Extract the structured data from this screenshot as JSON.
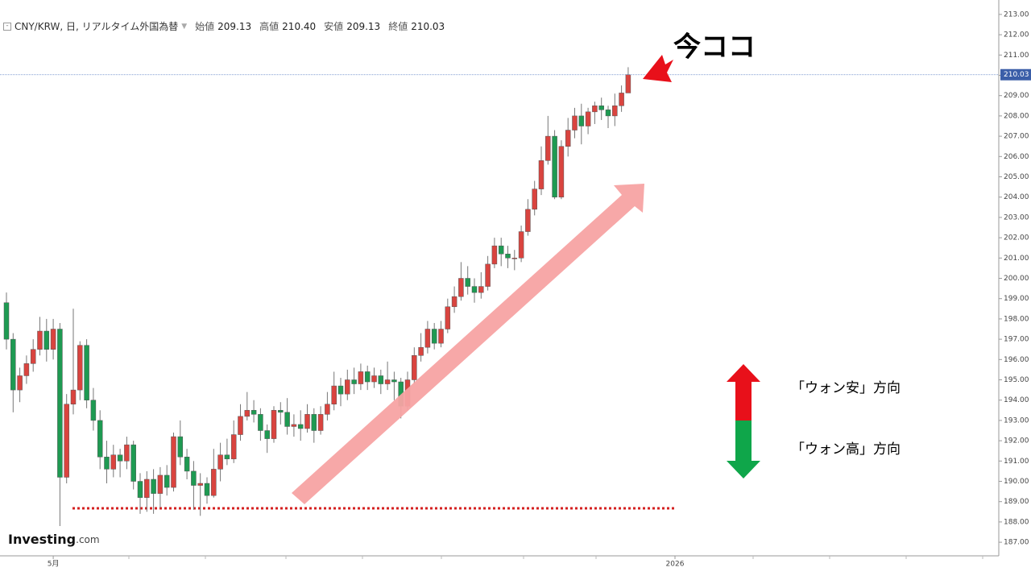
{
  "chart_data": {
    "type": "candlestick",
    "title": "CNY/KRW, 日, リアルタイム外国為替",
    "header_keys": [
      "始値",
      "高値",
      "安値",
      "終値"
    ],
    "last_labels": [
      "209.13",
      "210.40",
      "209.13",
      "210.03"
    ],
    "annotations": {
      "now": "今ココ",
      "weak": "「ウォン安」方向",
      "strong": "「ウォン高」方向"
    },
    "logo": [
      "Investing",
      ".com"
    ],
    "up_color": "#d9443f",
    "down_color": "#1e9a52",
    "support_line": 188.67,
    "support_color": "#d42020",
    "ylim": [
      186.33,
      213.71
    ],
    "yticks": [
      {
        "value": 187,
        "label": "187.00"
      },
      {
        "value": 188,
        "label": "188.00"
      },
      {
        "value": 189,
        "label": "189.00"
      },
      {
        "value": 190,
        "label": "190.00"
      },
      {
        "value": 191,
        "label": "191.00"
      },
      {
        "value": 192,
        "label": "192.00"
      },
      {
        "value": 193,
        "label": "193.00"
      },
      {
        "value": 194,
        "label": "194.00"
      },
      {
        "value": 195,
        "label": "195.00"
      },
      {
        "value": 196,
        "label": "196.00"
      },
      {
        "value": 197,
        "label": "197.00"
      },
      {
        "value": 198,
        "label": "198.00"
      },
      {
        "value": 199,
        "label": "199.00"
      },
      {
        "value": 200,
        "label": "200.00"
      },
      {
        "value": 201,
        "label": "201.00"
      },
      {
        "value": 202,
        "label": "202.00"
      },
      {
        "value": 203,
        "label": "203.00"
      },
      {
        "value": 204,
        "label": "204.00"
      },
      {
        "value": 205,
        "label": "205.00"
      },
      {
        "value": 206,
        "label": "206.00"
      },
      {
        "value": 207,
        "label": "207.00"
      },
      {
        "value": 208,
        "label": "208.00"
      },
      {
        "value": 209,
        "label": "209.00"
      },
      {
        "value": 210,
        "label": "210.00"
      },
      {
        "value": 211,
        "label": "211.00"
      },
      {
        "value": 212,
        "label": "212.00"
      },
      {
        "value": 213,
        "label": "213.00"
      }
    ],
    "categories": [
      null,
      null,
      null,
      null,
      null,
      null,
      null,
      "5月",
      null,
      null,
      null,
      null,
      null,
      null,
      null,
      null,
      null,
      null,
      null,
      null,
      null,
      null,
      null,
      null,
      null,
      null,
      null,
      null,
      null,
      null,
      null,
      null,
      null,
      null,
      null,
      null,
      null,
      null,
      null,
      null,
      null,
      null,
      null,
      null,
      null,
      null,
      null,
      null,
      null,
      null,
      null,
      null,
      null,
      null,
      null,
      null,
      null,
      null,
      null,
      null,
      null,
      null,
      null,
      null,
      null,
      null,
      null,
      null,
      null,
      null,
      null,
      null,
      null,
      null,
      null,
      null,
      null,
      null,
      null,
      null,
      null,
      null,
      null,
      null,
      null,
      null,
      null,
      null,
      null,
      null,
      null,
      null,
      null,
      null,
      null,
      null,
      null,
      null,
      null,
      null,
      "2026"
    ],
    "ohlc": {
      "open": [
        198.8,
        197.0,
        194.5,
        195.2,
        195.8,
        196.5,
        197.4,
        196.5,
        197.5,
        190.2,
        193.8,
        194.5,
        196.7,
        194.0,
        193.0,
        191.2,
        190.6,
        191.3,
        191.0,
        191.8,
        190.0,
        189.2,
        190.1,
        189.4,
        190.3,
        189.7,
        192.2,
        191.2,
        190.5,
        189.8,
        189.9,
        189.3,
        190.6,
        191.3,
        191.1,
        192.3,
        193.2,
        193.5,
        193.3,
        192.5,
        192.1,
        193.5,
        193.4,
        192.7,
        192.8,
        192.6,
        193.3,
        192.5,
        193.3,
        193.8,
        194.7,
        194.3,
        195.0,
        194.8,
        195.4,
        194.9,
        195.2,
        194.8,
        195.0,
        194.9,
        193.7,
        195.0,
        196.2,
        196.6,
        197.5,
        196.8,
        197.5,
        198.6,
        199.1,
        200.0,
        199.6,
        199.3,
        199.6,
        200.7,
        201.6,
        201.2,
        201.0,
        201.0,
        202.3,
        203.4,
        204.4,
        205.8,
        207.0,
        204.0,
        206.5,
        207.3,
        208.0,
        207.5,
        208.2,
        208.5,
        208.3,
        208.0,
        208.5,
        209.13
      ],
      "high": [
        199.3,
        197.3,
        195.6,
        196.2,
        197.0,
        198.1,
        198.0,
        198.0,
        197.8,
        194.3,
        198.5,
        196.9,
        197.0,
        194.6,
        193.5,
        192.0,
        191.8,
        191.6,
        192.2,
        192.0,
        190.4,
        190.5,
        190.6,
        190.7,
        190.8,
        192.4,
        193.0,
        191.6,
        191.0,
        190.4,
        190.2,
        191.6,
        191.9,
        192.1,
        193.0,
        193.8,
        194.4,
        194.0,
        193.6,
        192.8,
        193.7,
        193.9,
        194.1,
        193.3,
        193.5,
        193.8,
        193.6,
        193.7,
        194.4,
        195.4,
        195.1,
        195.5,
        195.6,
        195.8,
        195.7,
        195.6,
        195.5,
        195.9,
        195.4,
        195.1,
        195.4,
        196.6,
        197.3,
        197.9,
        197.8,
        197.9,
        199.0,
        199.6,
        200.8,
        200.6,
        200.0,
        200.3,
        201.1,
        202.0,
        202.0,
        201.6,
        201.4,
        202.6,
        203.9,
        204.8,
        206.5,
        208.0,
        207.3,
        206.8,
        207.9,
        208.4,
        208.6,
        208.4,
        208.7,
        208.9,
        208.5,
        209.1,
        209.5,
        210.4
      ],
      "low": [
        196.5,
        193.4,
        193.9,
        194.8,
        195.4,
        196.2,
        195.9,
        196.0,
        187.8,
        189.9,
        193.3,
        194.0,
        193.6,
        192.5,
        190.6,
        189.9,
        190.2,
        190.2,
        190.6,
        189.6,
        188.4,
        188.5,
        188.4,
        188.7,
        189.3,
        189.5,
        190.8,
        190.1,
        188.6,
        188.3,
        188.9,
        189.2,
        190.0,
        190.8,
        190.9,
        192.0,
        193.0,
        192.9,
        192.0,
        191.4,
        191.9,
        192.8,
        192.3,
        192.2,
        192.0,
        192.4,
        191.9,
        192.3,
        193.0,
        193.5,
        193.7,
        194.0,
        194.3,
        194.5,
        194.5,
        194.6,
        194.3,
        194.5,
        194.0,
        193.1,
        193.5,
        194.8,
        195.9,
        196.3,
        196.5,
        196.6,
        197.3,
        198.3,
        198.9,
        199.2,
        198.8,
        199.0,
        199.4,
        200.5,
        200.6,
        200.5,
        200.4,
        200.8,
        202.1,
        203.1,
        204.1,
        205.6,
        203.9,
        203.9,
        206.0,
        206.9,
        206.6,
        207.1,
        207.6,
        207.8,
        207.4,
        207.5,
        208.2,
        209.13
      ],
      "close": [
        197.0,
        194.5,
        195.2,
        195.8,
        196.5,
        197.4,
        196.5,
        197.5,
        190.2,
        193.8,
        194.5,
        196.7,
        194.0,
        193.0,
        191.2,
        190.6,
        191.3,
        191.0,
        191.8,
        190.0,
        189.2,
        190.1,
        189.4,
        190.3,
        189.7,
        192.2,
        191.2,
        190.5,
        189.8,
        189.9,
        189.3,
        190.6,
        191.3,
        191.1,
        192.3,
        193.2,
        193.5,
        193.3,
        192.5,
        192.1,
        193.5,
        193.4,
        192.7,
        192.8,
        192.6,
        193.3,
        192.5,
        193.3,
        193.8,
        194.7,
        194.3,
        195.0,
        194.8,
        195.4,
        194.9,
        195.2,
        194.8,
        195.0,
        194.9,
        193.7,
        195.0,
        196.2,
        196.6,
        197.5,
        196.8,
        197.5,
        198.6,
        199.1,
        200.0,
        199.6,
        199.3,
        199.6,
        200.7,
        201.6,
        201.2,
        201.0,
        201.0,
        202.3,
        203.4,
        204.4,
        205.8,
        207.0,
        204.0,
        206.5,
        207.3,
        208.0,
        207.5,
        208.2,
        208.5,
        208.3,
        208.0,
        208.5,
        209.13,
        210.03
      ]
    }
  }
}
